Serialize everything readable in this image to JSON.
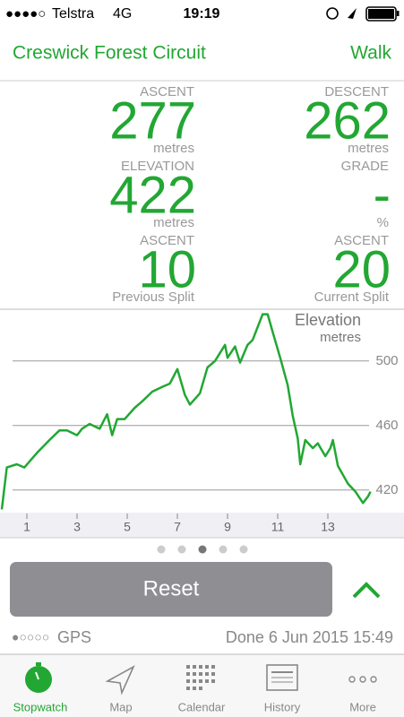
{
  "status_bar": {
    "signal": "●●●●○",
    "carrier": "Telstra",
    "network": "4G",
    "time": "19:19"
  },
  "nav": {
    "title": "Creswick Forest Circuit",
    "action": "Walk"
  },
  "stats": [
    {
      "label": "ASCENT",
      "value": 277,
      "unit": "metres"
    },
    {
      "label": "DESCENT",
      "value": 262,
      "unit": "metres"
    },
    {
      "label": "ELEVATION",
      "value": 422,
      "unit": "metres"
    },
    {
      "label": "GRADE",
      "value": "-",
      "unit": "%"
    },
    {
      "label": "ASCENT",
      "value": 10,
      "unit": "Previous Split"
    },
    {
      "label": "ASCENT",
      "value": 20,
      "unit": "Current Split"
    }
  ],
  "chart_data": {
    "type": "line",
    "title": "Elevation",
    "subtitle": "metres",
    "color": "#22a733",
    "x": [
      0,
      0.2,
      0.6,
      0.9,
      1.4,
      1.9,
      2.3,
      2.6,
      3.0,
      3.2,
      3.5,
      3.9,
      4.2,
      4.4,
      4.6,
      4.9,
      5.3,
      5.6,
      6.0,
      6.4,
      6.7,
      7.0,
      7.3,
      7.5,
      7.9,
      8.2,
      8.5,
      8.9,
      9.0,
      9.3,
      9.5,
      9.8,
      10.0,
      10.4,
      10.6,
      10.8,
      11.1,
      11.4,
      11.6,
      11.8,
      11.9,
      12.1,
      12.4,
      12.6,
      12.9,
      13.1,
      13.2,
      13.4,
      13.8,
      14.1,
      14.4,
      14.6,
      14.7
    ],
    "values": [
      408,
      434,
      436,
      434,
      443,
      451,
      457,
      457,
      454,
      458,
      461,
      458,
      467,
      454,
      464,
      464,
      471,
      475,
      481,
      484,
      486,
      495,
      479,
      473,
      480,
      496,
      500,
      510,
      502,
      509,
      499,
      510,
      513,
      529,
      529,
      518,
      502,
      485,
      466,
      452,
      436,
      451,
      446,
      449,
      441,
      446,
      451,
      435,
      424,
      419,
      412,
      416,
      419
    ],
    "xlim": [
      0,
      16
    ],
    "ylim": [
      406,
      531
    ],
    "xticks": [
      1,
      3,
      5,
      7,
      9,
      11,
      13
    ],
    "yticks": [
      420,
      460,
      500
    ],
    "grid": true
  },
  "controls": {
    "button": "Reset"
  },
  "footer": {
    "gps_signal": "●○○○○",
    "gps": "GPS",
    "status": "Done 6 Jun 2015 15:49"
  },
  "tabs": [
    "Stopwatch",
    "Map",
    "Calendar",
    "History",
    "More"
  ]
}
